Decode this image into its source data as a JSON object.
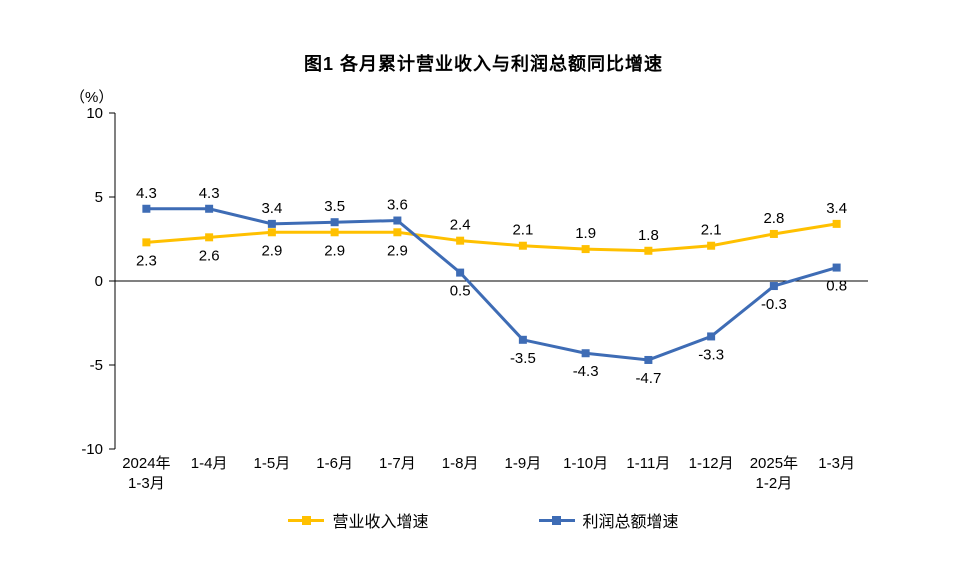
{
  "chart_data": {
    "type": "line",
    "title": "图1 各月累计营业收入与利润总额同比增速",
    "unit_label": "（%）",
    "categories": [
      "2024年\n1-3月",
      "1-4月",
      "1-5月",
      "1-6月",
      "1-7月",
      "1-8月",
      "1-9月",
      "1-10月",
      "1-11月",
      "1-12月",
      "2025年\n1-2月",
      "1-3月"
    ],
    "series": [
      {
        "name": "营业收入增速",
        "color": "#FFC000",
        "values": [
          2.3,
          2.6,
          2.9,
          2.9,
          2.9,
          2.4,
          2.1,
          1.9,
          1.8,
          2.1,
          2.8,
          3.4
        ],
        "label_positions": [
          "below",
          "below",
          "below",
          "below",
          "below",
          "above",
          "above",
          "above",
          "above",
          "above",
          "above",
          "above"
        ]
      },
      {
        "name": "利润总额增速",
        "color": "#3E6CB5",
        "values": [
          4.3,
          4.3,
          3.4,
          3.5,
          3.6,
          0.5,
          -3.5,
          -4.3,
          -4.7,
          -3.3,
          -0.3,
          0.8
        ],
        "label_positions": [
          "above",
          "above",
          "above",
          "above",
          "above",
          "below",
          "below",
          "below",
          "below",
          "below",
          "below",
          "below"
        ]
      }
    ],
    "ylim": [
      -10,
      10
    ],
    "yticks": [
      10,
      5,
      0,
      -5,
      -10
    ],
    "grid": false,
    "legend_position": "bottom",
    "axis_color": "#000000",
    "text_color": "#000000"
  }
}
